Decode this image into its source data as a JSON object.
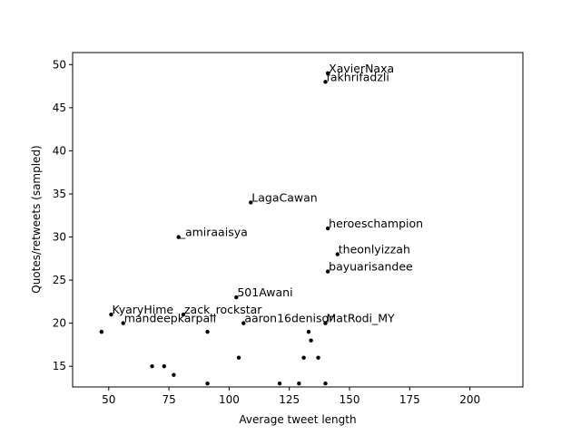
{
  "chart_data": {
    "type": "scatter",
    "title": "",
    "xlabel": "Average tweet length",
    "ylabel": "Quotes/retweets (sampled)",
    "xlim": [
      35,
      222
    ],
    "ylim": [
      12.6,
      51.4
    ],
    "xticks": [
      50,
      75,
      100,
      125,
      150,
      175,
      200
    ],
    "yticks": [
      15,
      20,
      25,
      30,
      35,
      40,
      45,
      50
    ],
    "grid": false,
    "marker_color": "#000000",
    "points": [
      {
        "x": 141,
        "y": 49,
        "label": "XavierNaxa"
      },
      {
        "x": 140,
        "y": 48,
        "label": "fakhrifadzli"
      },
      {
        "x": 109,
        "y": 34,
        "label": "LagaCawan"
      },
      {
        "x": 141,
        "y": 31,
        "label": "heroeschampion"
      },
      {
        "x": 79,
        "y": 30,
        "label": "_amiraaisya"
      },
      {
        "x": 145,
        "y": 28,
        "label": "theonlyizzah"
      },
      {
        "x": 141,
        "y": 26,
        "label": "bayuarisandee"
      },
      {
        "x": 103,
        "y": 23,
        "label": "501Awani"
      },
      {
        "x": 51,
        "y": 21,
        "label": "KyaryHime"
      },
      {
        "x": 81,
        "y": 21,
        "label": "zack_rockstar"
      },
      {
        "x": 56,
        "y": 20,
        "label": "mandeepkarpall"
      },
      {
        "x": 106,
        "y": 20,
        "label": "aaron16denison"
      },
      {
        "x": 140,
        "y": 20,
        "label": "MatRodi_MY"
      },
      {
        "x": 47,
        "y": 19,
        "label": ""
      },
      {
        "x": 91,
        "y": 19,
        "label": ""
      },
      {
        "x": 133,
        "y": 19,
        "label": ""
      },
      {
        "x": 134,
        "y": 18,
        "label": ""
      },
      {
        "x": 104,
        "y": 16,
        "label": ""
      },
      {
        "x": 131,
        "y": 16,
        "label": ""
      },
      {
        "x": 137,
        "y": 16,
        "label": ""
      },
      {
        "x": 68,
        "y": 15,
        "label": ""
      },
      {
        "x": 73,
        "y": 15,
        "label": ""
      },
      {
        "x": 77,
        "y": 14,
        "label": ""
      },
      {
        "x": 91,
        "y": 13,
        "label": ""
      },
      {
        "x": 121,
        "y": 13,
        "label": ""
      },
      {
        "x": 129,
        "y": 13,
        "label": ""
      },
      {
        "x": 140,
        "y": 13,
        "label": ""
      }
    ]
  }
}
